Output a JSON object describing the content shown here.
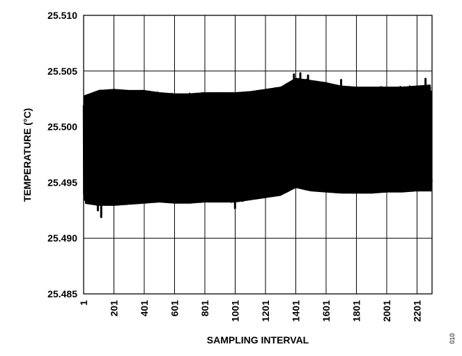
{
  "chart_data": {
    "type": "line",
    "title": "",
    "xlabel": "SAMPLING INTERVAL",
    "ylabel": "TEMPERATURE (°C)",
    "xlim": [
      1,
      2300
    ],
    "ylim": [
      25.485,
      25.51
    ],
    "grid": true,
    "x_ticks": [
      1,
      201,
      401,
      601,
      801,
      1001,
      1201,
      1401,
      1601,
      1801,
      2001,
      2201
    ],
    "x_tick_labels": [
      "1",
      "201",
      "401",
      "601",
      "801",
      "1001",
      "1201",
      "1401",
      "1601",
      "1801",
      "2001",
      "2201"
    ],
    "y_ticks": [
      25.485,
      25.49,
      25.495,
      25.5,
      25.505,
      25.51
    ],
    "y_tick_labels": [
      "25.485",
      "25.490",
      "25.495",
      "25.500",
      "25.505",
      "25.510"
    ],
    "series": [
      {
        "color": "#000000",
        "band": {
          "x": [
            1,
            101,
            201,
            301,
            401,
            501,
            601,
            701,
            801,
            901,
            1001,
            1101,
            1201,
            1301,
            1401,
            1501,
            1601,
            1701,
            1801,
            1901,
            2001,
            2101,
            2201,
            2300
          ],
          "upper": [
            25.5028,
            25.5033,
            25.5034,
            25.5033,
            25.5033,
            25.5031,
            25.503,
            25.503,
            25.5031,
            25.5031,
            25.5031,
            25.5032,
            25.5034,
            25.5036,
            25.5044,
            25.5042,
            25.504,
            25.5037,
            25.5036,
            25.5036,
            25.5036,
            25.5036,
            25.5037,
            25.5038
          ],
          "lower": [
            25.4931,
            25.4929,
            25.4929,
            25.493,
            25.4931,
            25.4932,
            25.4931,
            25.4931,
            25.4932,
            25.4932,
            25.4932,
            25.4934,
            25.4936,
            25.4938,
            25.4945,
            25.4942,
            25.4941,
            25.494,
            25.494,
            25.494,
            25.4941,
            25.4941,
            25.4942,
            25.4942
          ]
        },
        "spikes": [
          {
            "x": 117,
            "y": 25.4919
          },
          {
            "x": 95,
            "y": 25.4925
          },
          {
            "x": 1431,
            "y": 25.5048
          },
          {
            "x": 1389,
            "y": 25.5047
          },
          {
            "x": 1482,
            "y": 25.5046
          },
          {
            "x": 2257,
            "y": 25.5043
          },
          {
            "x": 1700,
            "y": 25.5042
          },
          {
            "x": 1000,
            "y": 25.4927
          }
        ]
      }
    ]
  },
  "figure_id": "010"
}
